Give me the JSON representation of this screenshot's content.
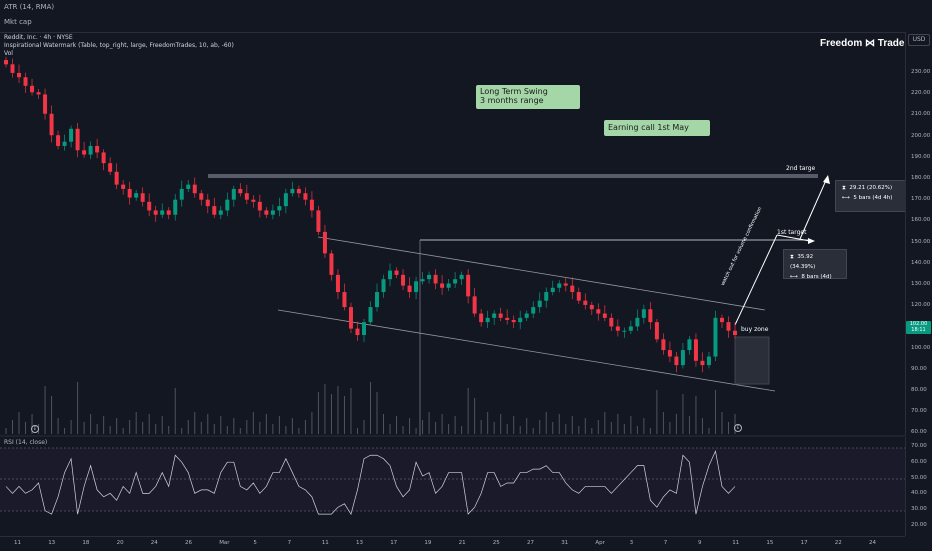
{
  "top": {
    "atr_label": "ATR (14, RMA)",
    "mktcap_label": "Mkt cap"
  },
  "legend": {
    "symbol_line": "Reddit, Inc. · 4h · NYSE",
    "indicator_line": "Inspirational Watermark (Table, top_right, large, FreedomTrades, 10, ab, -60)",
    "vol_label": "Vol"
  },
  "brand": "Freedom ⋈ Trades",
  "currency": "USD",
  "price_ticks": [
    "230.00",
    "220.00",
    "210.00",
    "200.00",
    "190.00",
    "180.00",
    "170.00",
    "160.00",
    "150.00",
    "140.00",
    "130.00",
    "120.00",
    "110.00",
    "100.00",
    "90.00",
    "80.00",
    "70.00",
    "60.00"
  ],
  "last_price": {
    "value": "102.00",
    "timer": "18:11"
  },
  "notes": {
    "long_term": "Long Term Swing\n3 months range",
    "earnings": "Earning call 1st May"
  },
  "annotations": {
    "second_target": "2nd targe",
    "first_target": "1st target",
    "buy_zone": "buy zone",
    "diag": "watch out for volume confirmation"
  },
  "measure1": {
    "change": "29.21 (20.62%)",
    "bars": "5 bars (4d 4h)"
  },
  "measure2": {
    "change": "35.92 (34.39%)",
    "bars": "8 bars (4d)"
  },
  "rsi": {
    "label": "RSI (14, close)",
    "ticks": [
      "70.00",
      "60.00",
      "50.00",
      "40.00",
      "30.00",
      "20.00"
    ]
  },
  "x_ticks": [
    "11",
    "13",
    "18",
    "20",
    "24",
    "26",
    "Mar",
    "5",
    "7",
    "11",
    "13",
    "17",
    "19",
    "21",
    "25",
    "27",
    "31",
    "Apr",
    "3",
    "7",
    "9",
    "11",
    "15",
    "17",
    "22",
    "24"
  ],
  "colors": {
    "up": "#089981",
    "down": "#f23645",
    "note_bg": "#a5d6a7"
  },
  "chart_data": {
    "type": "candlestick",
    "ylabel": "USD",
    "ylim": [
      55,
      237
    ],
    "close_approx": [
      228,
      224,
      222,
      218,
      215,
      214,
      205,
      195,
      190,
      192,
      198,
      188,
      186,
      190,
      187,
      182,
      178,
      172,
      170,
      166,
      168,
      164,
      160,
      158,
      160,
      158,
      165,
      170,
      172,
      168,
      165,
      162,
      158,
      160,
      165,
      170,
      168,
      165,
      164,
      160,
      158,
      160,
      162,
      168,
      170,
      168,
      165,
      160,
      150,
      140,
      130,
      122,
      115,
      105,
      102,
      108,
      115,
      122,
      128,
      132,
      130,
      125,
      122,
      127,
      128,
      130,
      126,
      124,
      126,
      128,
      130,
      120,
      112,
      108,
      110,
      112,
      110,
      109,
      108,
      110,
      112,
      115,
      118,
      122,
      124,
      126,
      125,
      122,
      118,
      116,
      114,
      112,
      110,
      106,
      104,
      104,
      106,
      110,
      114,
      108,
      100,
      95,
      92,
      88,
      95,
      100,
      90,
      88,
      92,
      110,
      108,
      104,
      102
    ]
  }
}
